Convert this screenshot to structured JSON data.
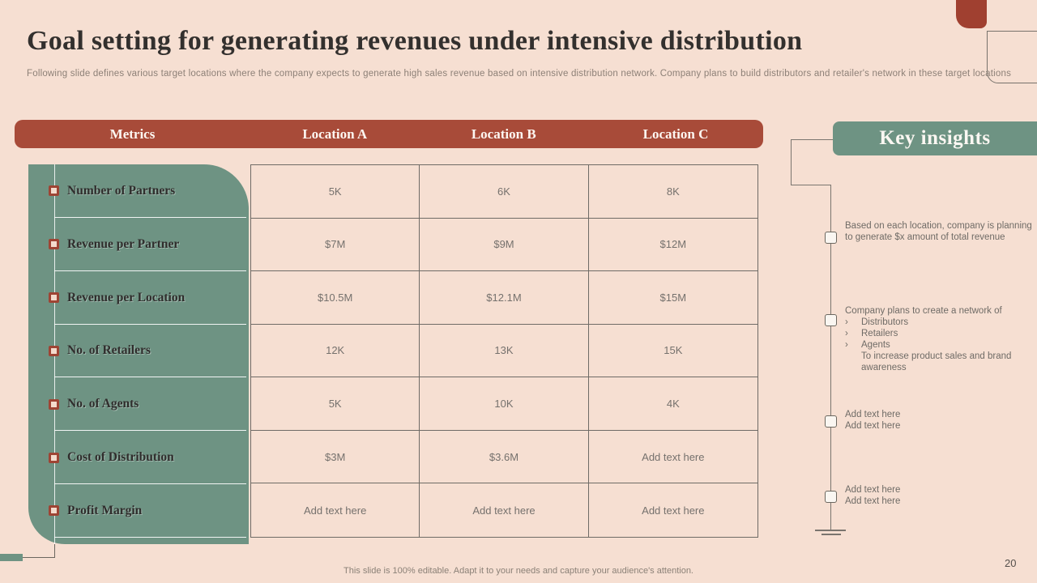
{
  "slide": {
    "title": "Goal setting for generating revenues under intensive distribution",
    "subtitle": "Following slide defines various target locations where the company expects to generate high sales revenue based on intensive distribution network. Company plans to build distributors and retailer's network in these target locations",
    "footer": "This slide is 100% editable. Adapt it to your needs and capture your audience's attention.",
    "page_number": "20"
  },
  "colors": {
    "background": "#f6dfd2",
    "header_bar": "#a84b39",
    "panel_green": "#6e9383",
    "bullet_red": "#9e4434",
    "grid_border": "#6f6b66"
  },
  "table": {
    "headers": [
      "Metrics",
      "Location A",
      "Location B",
      "Location C"
    ],
    "rows": [
      {
        "metric": "Number of Partners",
        "values": [
          "5K",
          "6K",
          "8K"
        ]
      },
      {
        "metric": "Revenue per Partner",
        "values": [
          "$7M",
          "$9M",
          "$12M"
        ]
      },
      {
        "metric": "Revenue per Location",
        "values": [
          "$10.5M",
          "$12.1M",
          "$15M"
        ]
      },
      {
        "metric": "No. of Retailers",
        "values": [
          "12K",
          "13K",
          "15K"
        ]
      },
      {
        "metric": "No. of Agents",
        "values": [
          "5K",
          "10K",
          "4K"
        ]
      },
      {
        "metric": "Cost of Distribution",
        "values": [
          "$3M",
          "$3.6M",
          "Add text here"
        ]
      },
      {
        "metric": "Profit Margin",
        "values": [
          "Add text here",
          "Add text here",
          "Add text here"
        ]
      }
    ]
  },
  "insights": {
    "title": "Key insights",
    "bullet_marker": "›",
    "items": [
      {
        "lines": [
          {
            "type": "plain",
            "text": "Based on each location, company is planning to generate $x amount of total revenue"
          }
        ]
      },
      {
        "lines": [
          {
            "type": "plain",
            "text": "Company plans to create a network of"
          },
          {
            "type": "bullet",
            "text": "Distributors"
          },
          {
            "type": "bullet",
            "text": "Retailers"
          },
          {
            "type": "bullet",
            "text": "Agents"
          },
          {
            "type": "indent",
            "text": "To increase product sales and brand awareness"
          }
        ]
      },
      {
        "lines": [
          {
            "type": "plain",
            "text": "Add text here"
          },
          {
            "type": "plain",
            "text": "Add text here"
          }
        ]
      },
      {
        "lines": [
          {
            "type": "plain",
            "text": "Add text here"
          },
          {
            "type": "plain",
            "text": "Add text here"
          }
        ]
      }
    ]
  }
}
